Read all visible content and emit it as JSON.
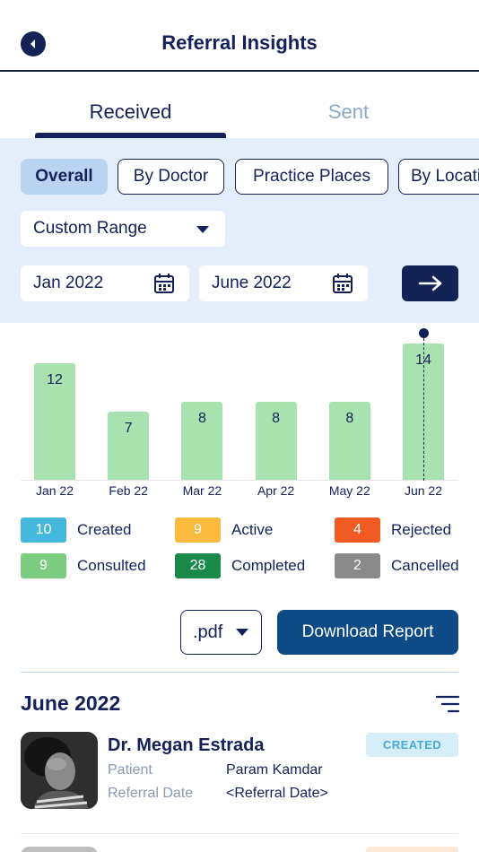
{
  "header": {
    "title": "Referral Insights"
  },
  "tabs": [
    {
      "label": "Received",
      "active": true
    },
    {
      "label": "Sent",
      "active": false
    }
  ],
  "filters": {
    "chips": [
      "Overall",
      "By Doctor",
      "Practice Places",
      "By Location"
    ],
    "active_chip": "Overall",
    "range": "Custom Range",
    "from": "Jan 2022",
    "to": "June 2022"
  },
  "chart_data": {
    "type": "bar",
    "categories": [
      "Jan 22",
      "Feb 22",
      "Mar 22",
      "Apr 22",
      "May 22",
      "Jun 22"
    ],
    "values": [
      12,
      7,
      8,
      8,
      8,
      14
    ],
    "ylim": [
      0,
      14
    ],
    "highlighted": "Jun 22",
    "bar_color": "#a8e2ae",
    "grid": false
  },
  "legend": [
    {
      "count": "10",
      "label": "Created",
      "color": "#45b8de"
    },
    {
      "count": "9",
      "label": "Active",
      "color": "#fbb93e"
    },
    {
      "count": "4",
      "label": "Rejected",
      "color": "#f15a22"
    },
    {
      "count": "9",
      "label": "Consulted",
      "color": "#7ccd7f"
    },
    {
      "count": "28",
      "label": "Completed",
      "color": "#1a8a4a"
    },
    {
      "count": "2",
      "label": "Cancelled",
      "color": "#8a8a8a"
    }
  ],
  "report": {
    "format": ".pdf",
    "download_label": "Download Report"
  },
  "section": {
    "title": "June 2022"
  },
  "referrals": [
    {
      "doctor": "Dr. Megan Estrada",
      "status": "CREATED",
      "patient_label": "Patient",
      "patient": "Param Kamdar",
      "date_label": "Referral Date",
      "date": "<Referral Date>"
    }
  ],
  "colors": {
    "primary": "#14205a",
    "accent": "#0d4a86",
    "panel": "#e4eefa",
    "inactive_tab": "#8ba8c8"
  },
  "icons": [
    "back-arrow-icon",
    "calendar-icon",
    "arrow-right-icon",
    "chevron-down-icon",
    "sort-icon"
  ]
}
